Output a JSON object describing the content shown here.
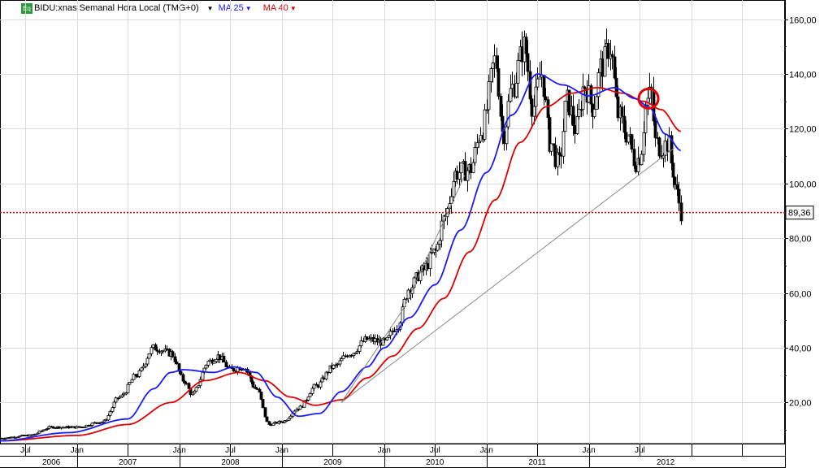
{
  "header": {
    "eq_badge": "Eq",
    "title": "BIDU:xnas Semanal Hora Local (TMG+0)",
    "ma25_label": "MA 25",
    "ma40_label": "MA 40"
  },
  "colors": {
    "ma25": "#1a1aff",
    "ma40": "#e00000",
    "trendline": "#8a8a8a",
    "price_line": "#cc0000",
    "up_candle": "#ffffff",
    "down_candle": "#000000",
    "grid": "#dcdcdc",
    "marker": "#e00000"
  },
  "chart_data": {
    "type": "candlestick",
    "ylim": [
      5,
      167
    ],
    "y_ticks": [
      "20,00",
      "40,00",
      "60,00",
      "80,00",
      "100,00",
      "120,00",
      "140,00",
      "160,00"
    ],
    "y_tick_values": [
      20,
      40,
      60,
      80,
      100,
      120,
      140,
      160
    ],
    "last_price_label": "89,36",
    "last_price": 89.36,
    "x_axis": {
      "month_labels": [
        "Jul",
        "Jan",
        "Jan",
        "Jul",
        "Jan",
        "Jan",
        "Jul",
        "Jan",
        "Jan",
        "Jul"
      ],
      "month_label_dates": [
        "2006-07",
        "2007-01",
        "2008-01",
        "2008-07",
        "2009-01",
        "2010-01",
        "2010-07",
        "2011-01",
        "2012-01",
        "2012-07"
      ],
      "month_ticks": [
        "2006-07",
        "2007-01",
        "2007-07",
        "2008-01",
        "2008-07",
        "2009-01",
        "2009-07",
        "2010-01",
        "2010-07",
        "2011-01",
        "2011-07",
        "2012-01",
        "2012-07",
        "2013-01",
        "2013-07"
      ],
      "year_labels": [
        "2006",
        "2007",
        "2008",
        "2009",
        "2010",
        "2011",
        "2012"
      ],
      "year_label_dates": [
        "2006-10",
        "2007-07",
        "2008-07",
        "2009-07",
        "2010-07",
        "2011-07",
        "2012-10"
      ],
      "year_ticks": [
        "2007-01",
        "2008-01",
        "2009-01",
        "2010-01",
        "2011-01",
        "2012-01"
      ],
      "start": "2006-04",
      "end": "2013-12"
    },
    "price_anchors": [
      [
        "2006-04-01",
        7
      ],
      [
        "2006-07-15",
        8
      ],
      [
        "2006-10-01",
        11
      ],
      [
        "2007-01-01",
        11
      ],
      [
        "2007-04-01",
        13
      ],
      [
        "2007-06-01",
        22
      ],
      [
        "2007-08-01",
        30
      ],
      [
        "2007-10-01",
        40
      ],
      [
        "2007-12-01",
        38
      ],
      [
        "2008-01-15",
        28
      ],
      [
        "2008-02-15",
        23
      ],
      [
        "2008-04-15",
        35
      ],
      [
        "2008-05-15",
        37
      ],
      [
        "2008-07-01",
        32
      ],
      [
        "2008-08-15",
        33
      ],
      [
        "2008-10-01",
        25
      ],
      [
        "2008-11-15",
        12
      ],
      [
        "2009-01-01",
        13
      ],
      [
        "2009-03-01",
        18
      ],
      [
        "2009-05-01",
        26
      ],
      [
        "2009-07-01",
        33
      ],
      [
        "2009-09-01",
        38
      ],
      [
        "2009-11-01",
        43
      ],
      [
        "2010-01-01",
        42
      ],
      [
        "2010-02-15",
        48
      ],
      [
        "2010-04-01",
        62
      ],
      [
        "2010-05-15",
        68
      ],
      [
        "2010-07-01",
        75
      ],
      [
        "2010-08-01",
        87
      ],
      [
        "2010-09-15",
        104
      ],
      [
        "2010-11-01",
        105
      ],
      [
        "2010-12-15",
        120
      ],
      [
        "2011-02-01",
        145
      ],
      [
        "2011-03-01",
        118
      ],
      [
        "2011-04-01",
        135
      ],
      [
        "2011-05-15",
        150
      ],
      [
        "2011-06-15",
        128
      ],
      [
        "2011-07-15",
        140
      ],
      [
        "2011-08-15",
        115
      ],
      [
        "2011-09-15",
        107
      ],
      [
        "2011-10-15",
        130
      ],
      [
        "2011-11-15",
        120
      ],
      [
        "2011-12-15",
        136
      ],
      [
        "2012-01-15",
        128
      ],
      [
        "2012-02-15",
        143
      ],
      [
        "2012-03-15",
        150
      ],
      [
        "2012-04-15",
        125
      ],
      [
        "2012-05-15",
        118
      ],
      [
        "2012-06-15",
        108
      ],
      [
        "2012-07-01",
        110
      ],
      [
        "2012-07-25",
        130
      ],
      [
        "2012-08-10",
        133
      ],
      [
        "2012-08-25",
        115
      ],
      [
        "2012-09-15",
        113
      ],
      [
        "2012-10-10",
        115
      ],
      [
        "2012-10-25",
        105
      ],
      [
        "2012-11-10",
        96
      ],
      [
        "2012-11-25",
        89.36
      ]
    ],
    "ma25_anchors": [
      [
        "2006-04-01",
        6
      ],
      [
        "2006-12-01",
        9
      ],
      [
        "2007-07-01",
        14
      ],
      [
        "2007-10-01",
        25
      ],
      [
        "2007-12-01",
        31
      ],
      [
        "2008-01-15",
        32
      ],
      [
        "2008-05-01",
        31
      ],
      [
        "2008-07-15",
        33
      ],
      [
        "2008-10-01",
        31
      ],
      [
        "2008-12-15",
        22
      ],
      [
        "2009-03-01",
        15
      ],
      [
        "2009-05-15",
        16
      ],
      [
        "2009-08-01",
        24
      ],
      [
        "2009-11-01",
        33
      ],
      [
        "2010-01-01",
        40
      ],
      [
        "2010-04-01",
        51
      ],
      [
        "2010-07-01",
        63
      ],
      [
        "2010-10-01",
        83
      ],
      [
        "2011-01-01",
        104
      ],
      [
        "2011-04-01",
        125
      ],
      [
        "2011-07-01",
        140
      ],
      [
        "2011-10-01",
        136
      ],
      [
        "2012-01-01",
        132
      ],
      [
        "2012-04-01",
        135
      ],
      [
        "2012-06-15",
        131
      ],
      [
        "2012-08-01",
        128
      ],
      [
        "2012-10-01",
        118
      ],
      [
        "2012-11-25",
        112
      ]
    ],
    "ma40_anchors": [
      [
        "2006-04-01",
        6
      ],
      [
        "2007-01-01",
        8
      ],
      [
        "2007-07-01",
        12
      ],
      [
        "2007-12-01",
        20
      ],
      [
        "2008-04-01",
        28
      ],
      [
        "2008-08-01",
        31
      ],
      [
        "2008-11-01",
        28
      ],
      [
        "2009-02-01",
        22
      ],
      [
        "2009-05-01",
        19
      ],
      [
        "2009-08-01",
        21
      ],
      [
        "2009-11-01",
        29
      ],
      [
        "2010-02-01",
        37
      ],
      [
        "2010-05-01",
        47
      ],
      [
        "2010-08-01",
        58
      ],
      [
        "2010-11-01",
        75
      ],
      [
        "2011-02-01",
        94
      ],
      [
        "2011-05-01",
        115
      ],
      [
        "2011-08-01",
        128
      ],
      [
        "2011-11-01",
        133
      ],
      [
        "2012-02-01",
        135
      ],
      [
        "2012-05-01",
        133
      ],
      [
        "2012-07-15",
        130
      ],
      [
        "2012-09-15",
        127
      ],
      [
        "2012-11-25",
        119
      ]
    ],
    "trendlines": [
      {
        "from": [
          "2009-08-01",
          20
        ],
        "to": [
          "2012-11-01",
          113
        ]
      },
      {
        "from": [
          "2009-08-01",
          20
        ],
        "to": [
          "2010-03-15",
          55
        ]
      },
      {
        "from": [
          "2010-03-15",
          55
        ],
        "to": [
          "2010-10-15",
          103
        ]
      }
    ],
    "annotation_circle": {
      "date": "2012-08-01",
      "value": 131
    }
  }
}
